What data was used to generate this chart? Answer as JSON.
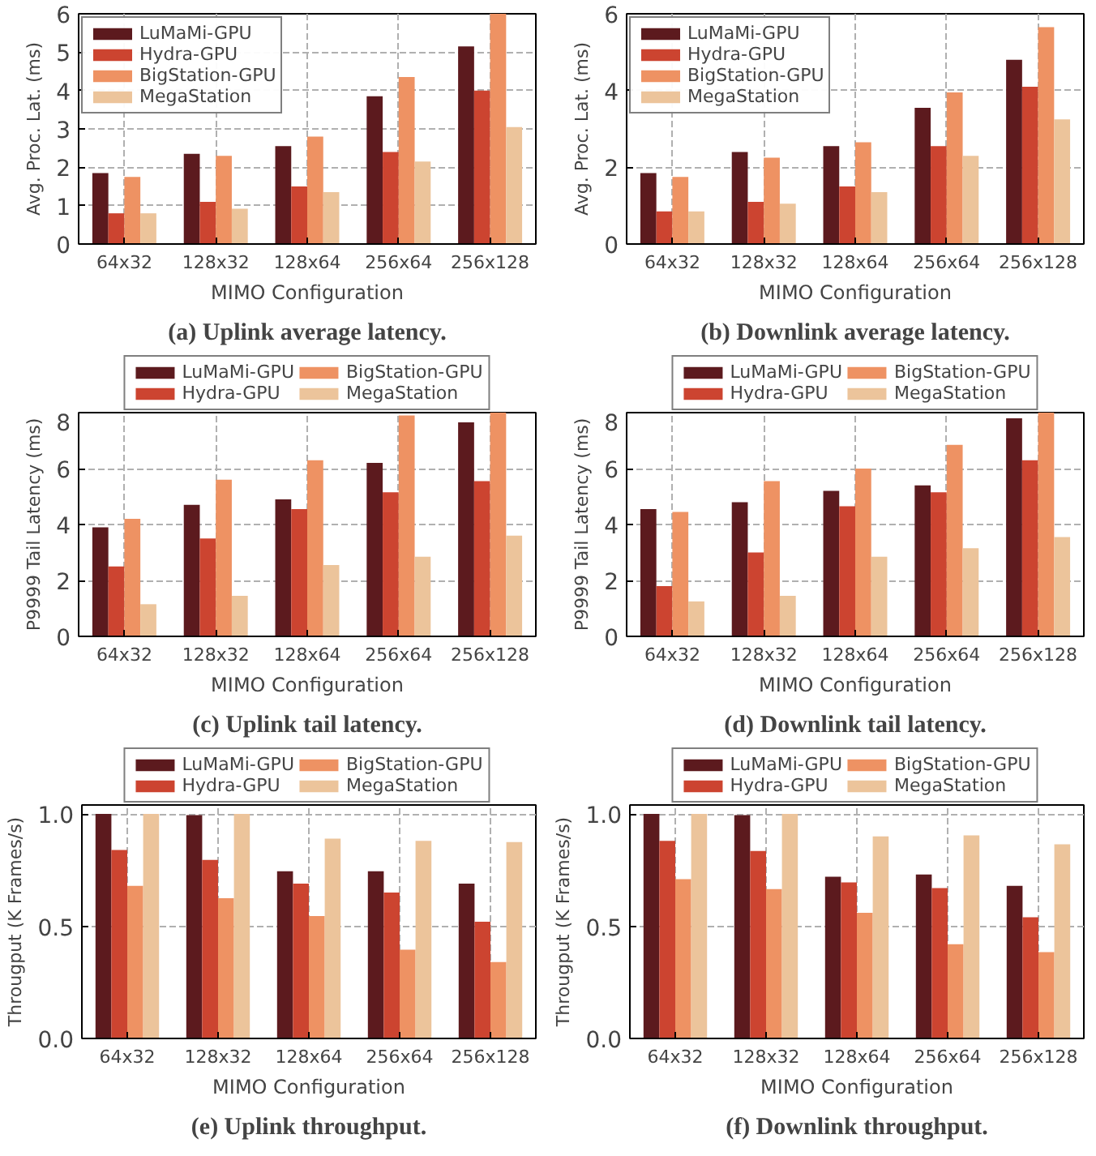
{
  "chart_data": [
    {
      "type": "bar",
      "title": "(a) Uplink average latency.",
      "xlabel": "MIMO Configuration",
      "ylabel": "Avg. Proc. Lat. (ms)",
      "categories": [
        "64x32",
        "128x32",
        "128x64",
        "256x64",
        "256x128"
      ],
      "ylim": [
        0,
        6
      ],
      "yticks": [
        0,
        1,
        2,
        3,
        4,
        5,
        6
      ],
      "grid": true,
      "legend": "top left",
      "series": [
        {
          "name": "LuMaMi-GPU",
          "color": "#5c1a1e",
          "values": [
            1.85,
            2.35,
            2.55,
            3.85,
            5.15
          ]
        },
        {
          "name": "Hydra-GPU",
          "color": "#cc4430",
          "values": [
            0.8,
            1.1,
            1.5,
            2.4,
            4.0
          ]
        },
        {
          "name": "BigStation-GPU",
          "color": "#ee9263",
          "values": [
            1.75,
            2.3,
            2.8,
            4.35,
            6.0
          ]
        },
        {
          "name": "MegaStation",
          "color": "#ecc49b",
          "values": [
            0.8,
            0.92,
            1.35,
            2.15,
            3.05
          ]
        }
      ]
    },
    {
      "type": "bar",
      "title": "(b) Downlink average latency.",
      "xlabel": "MIMO Configuration",
      "ylabel": "Avg. Proc. Lat. (ms)",
      "categories": [
        "64x32",
        "128x32",
        "128x64",
        "256x64",
        "256x128"
      ],
      "ylim": [
        0,
        6
      ],
      "yticks": [
        0,
        2,
        4,
        6
      ],
      "grid": true,
      "legend": "top left",
      "series": [
        {
          "name": "LuMaMi-GPU",
          "color": "#5c1a1e",
          "values": [
            1.85,
            2.4,
            2.55,
            3.55,
            4.8
          ]
        },
        {
          "name": "Hydra-GPU",
          "color": "#cc4430",
          "values": [
            0.85,
            1.1,
            1.5,
            2.55,
            4.1
          ]
        },
        {
          "name": "BigStation-GPU",
          "color": "#ee9263",
          "values": [
            1.75,
            2.25,
            2.65,
            3.95,
            5.65
          ]
        },
        {
          "name": "MegaStation",
          "color": "#ecc49b",
          "values": [
            0.85,
            1.05,
            1.35,
            2.3,
            3.25
          ]
        }
      ]
    },
    {
      "type": "bar",
      "title": "(c) Uplink tail latency.",
      "xlabel": "MIMO Configuration",
      "ylabel": "P9999 Tail Latency (ms)",
      "categories": [
        "64x32",
        "128x32",
        "128x64",
        "256x64",
        "256x128"
      ],
      "ylim": [
        0,
        8
      ],
      "yticks": [
        0,
        2,
        4,
        6,
        8
      ],
      "grid": true,
      "legend": "top",
      "series": [
        {
          "name": "LuMaMi-GPU",
          "color": "#5c1a1e",
          "values": [
            3.9,
            4.7,
            4.9,
            6.2,
            7.65
          ]
        },
        {
          "name": "Hydra-GPU",
          "color": "#cc4430",
          "values": [
            2.5,
            3.5,
            4.55,
            5.15,
            5.55
          ]
        },
        {
          "name": "BigStation-GPU",
          "color": "#ee9263",
          "values": [
            4.2,
            5.6,
            6.3,
            7.9,
            8.0
          ]
        },
        {
          "name": "MegaStation",
          "color": "#ecc49b",
          "values": [
            1.15,
            1.45,
            2.55,
            2.85,
            3.6
          ]
        }
      ]
    },
    {
      "type": "bar",
      "title": "(d) Downlink tail latency.",
      "xlabel": "MIMO Configuration",
      "ylabel": "P9999 Tail Latency (ms)",
      "categories": [
        "64x32",
        "128x32",
        "128x64",
        "256x64",
        "256x128"
      ],
      "ylim": [
        0,
        8
      ],
      "yticks": [
        0,
        2,
        4,
        6,
        8
      ],
      "grid": true,
      "legend": "top",
      "series": [
        {
          "name": "LuMaMi-GPU",
          "color": "#5c1a1e",
          "values": [
            4.55,
            4.8,
            5.2,
            5.4,
            7.8
          ]
        },
        {
          "name": "Hydra-GPU",
          "color": "#cc4430",
          "values": [
            1.8,
            3.0,
            4.65,
            5.15,
            6.3
          ]
        },
        {
          "name": "BigStation-GPU",
          "color": "#ee9263",
          "values": [
            4.45,
            5.55,
            6.0,
            6.85,
            8.0
          ]
        },
        {
          "name": "MegaStation",
          "color": "#ecc49b",
          "values": [
            1.25,
            1.45,
            2.85,
            3.15,
            3.55
          ]
        }
      ]
    },
    {
      "type": "bar",
      "title": "(e) Uplink throughput.",
      "xlabel": "MIMO Configuration",
      "ylabel": "Througput (K Frames/s)",
      "categories": [
        "64x32",
        "128x32",
        "128x64",
        "256x64",
        "256x128"
      ],
      "ylim": [
        0,
        1.04
      ],
      "yticks": [
        {
          "value": 0,
          "label": "0.0"
        },
        {
          "value": 0.5,
          "label": "0.5"
        },
        {
          "value": 1,
          "label": "1.0"
        }
      ],
      "grid": true,
      "legend": "top",
      "series": [
        {
          "name": "LuMaMi-GPU",
          "color": "#5c1a1e",
          "values": [
            1.0,
            0.995,
            0.745,
            0.745,
            0.69
          ]
        },
        {
          "name": "Hydra-GPU",
          "color": "#cc4430",
          "values": [
            0.84,
            0.795,
            0.69,
            0.65,
            0.52
          ]
        },
        {
          "name": "BigStation-GPU",
          "color": "#ee9263",
          "values": [
            0.68,
            0.625,
            0.545,
            0.395,
            0.34
          ]
        },
        {
          "name": "MegaStation",
          "color": "#ecc49b",
          "values": [
            1.0,
            1.0,
            0.89,
            0.88,
            0.875
          ]
        }
      ]
    },
    {
      "type": "bar",
      "title": "(f) Downlink throughput.",
      "xlabel": "MIMO Configuration",
      "ylabel": "Througput (K Frames/s)",
      "categories": [
        "64x32",
        "128x32",
        "128x64",
        "256x64",
        "256x128"
      ],
      "ylim": [
        0,
        1.04
      ],
      "yticks": [
        {
          "value": 0,
          "label": "0.0"
        },
        {
          "value": 0.5,
          "label": "0.5"
        },
        {
          "value": 1,
          "label": "1.0"
        }
      ],
      "grid": true,
      "legend": "top",
      "series": [
        {
          "name": "LuMaMi-GPU",
          "color": "#5c1a1e",
          "values": [
            1.0,
            0.995,
            0.72,
            0.73,
            0.68
          ]
        },
        {
          "name": "Hydra-GPU",
          "color": "#cc4430",
          "values": [
            0.88,
            0.835,
            0.695,
            0.67,
            0.54
          ]
        },
        {
          "name": "BigStation-GPU",
          "color": "#ee9263",
          "values": [
            0.71,
            0.665,
            0.56,
            0.42,
            0.385
          ]
        },
        {
          "name": "MegaStation",
          "color": "#ecc49b",
          "values": [
            1.0,
            1.0,
            0.9,
            0.905,
            0.865
          ]
        }
      ]
    }
  ]
}
